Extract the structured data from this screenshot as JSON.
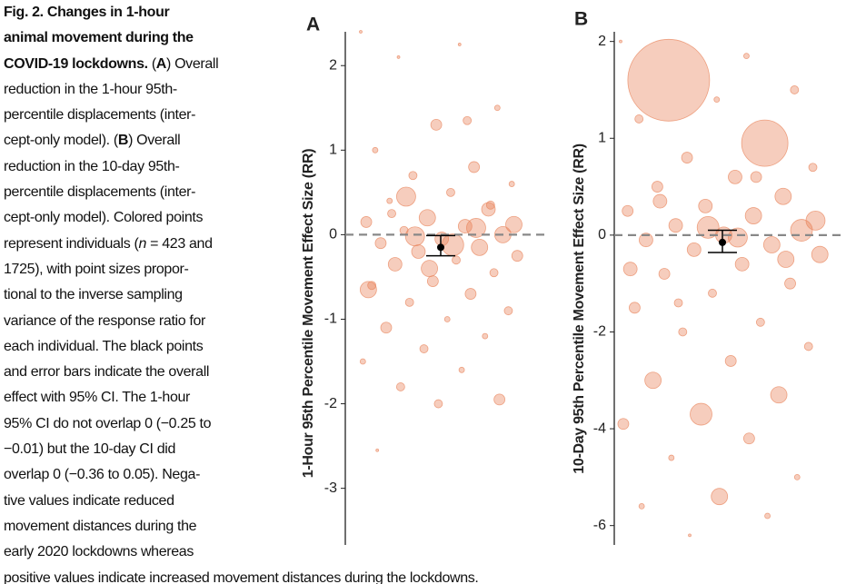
{
  "caption": {
    "lines": [
      [
        {
          "text": "Fig. 2. Changes in 1-hour",
          "bold": true
        }
      ],
      [
        {
          "text": "animal movement during the",
          "bold": true
        }
      ],
      [
        {
          "text": "COVID-19 lockdowns.",
          "bold": true
        },
        {
          "text": " ("
        },
        {
          "text": "A",
          "bold": true
        },
        {
          "text": ") Overall"
        }
      ],
      [
        {
          "text": "reduction in the 1-hour 95th-"
        }
      ],
      [
        {
          "text": "percentile displacements (inter-"
        }
      ],
      [
        {
          "text": "cept-only model). ("
        },
        {
          "text": "B",
          "bold": true
        },
        {
          "text": ") Overall"
        }
      ],
      [
        {
          "text": "reduction in the 10-day 95th-"
        }
      ],
      [
        {
          "text": "percentile displacements (inter-"
        }
      ],
      [
        {
          "text": "cept-only model). Colored points"
        }
      ],
      [
        {
          "text": "represent individuals ("
        },
        {
          "text": "n",
          "italic": true
        },
        {
          "text": " = 423 and"
        }
      ],
      [
        {
          "text": "1725), with point sizes propor-"
        }
      ],
      [
        {
          "text": "tional to the inverse sampling"
        }
      ],
      [
        {
          "text": "variance of the response ratio for"
        }
      ],
      [
        {
          "text": "each individual. The black points"
        }
      ],
      [
        {
          "text": "and error bars indicate the overall"
        }
      ],
      [
        {
          "text": "effect with 95% CI. The 1-hour"
        }
      ],
      [
        {
          "text": "95% CI do not overlap 0 (−0.25 to"
        }
      ],
      [
        {
          "text": "−0.01) but the 10-day CI did"
        }
      ],
      [
        {
          "text": "overlap 0 (−0.36 to 0.05). Nega-"
        }
      ],
      [
        {
          "text": "tive values indicate reduced"
        }
      ],
      [
        {
          "text": "movement distances during the"
        }
      ],
      [
        {
          "text": "early 2020 lockdowns whereas"
        }
      ],
      [
        {
          "text": "positive values indicate increased movement distances during the lockdowns."
        }
      ]
    ]
  },
  "chart_data": [
    {
      "type": "scatter",
      "label": "A",
      "ylabel": "1-Hour 95th Percentile Movement Effect Size (RR)",
      "color": "#e8835a",
      "ylim": [
        -3.67,
        2.4
      ],
      "yticks": [
        2,
        1,
        0,
        -1,
        -2,
        -3
      ],
      "reference_line": 0,
      "values": [
        2.4,
        2.25,
        2.1,
        1.5,
        1.3,
        1.0,
        0.8,
        0.7,
        0.6,
        0.5,
        0.4,
        0.3,
        0.2,
        0.15,
        0.1,
        0.05,
        0.0,
        -0.05,
        -0.1,
        -0.15,
        -0.2,
        -0.25,
        -0.3,
        -0.35,
        -0.45,
        -0.55,
        -0.6,
        -0.7,
        -0.8,
        -0.9,
        -1.0,
        -1.1,
        -1.2,
        -1.35,
        -1.5,
        -1.6,
        -1.8,
        -1.95,
        -2.0,
        -2.55,
        0.08,
        -0.02,
        0.12,
        -0.12,
        0.25,
        0.35,
        -0.4,
        -0.65,
        1.35,
        0.45
      ],
      "sizes": [
        1,
        1,
        1,
        2,
        4,
        2,
        4,
        3,
        2,
        3,
        2,
        5,
        6,
        4,
        5,
        3,
        6,
        5,
        4,
        6,
        5,
        4,
        3,
        5,
        3,
        4,
        3,
        4,
        3,
        3,
        2,
        4,
        2,
        3,
        2,
        2,
        3,
        4,
        3,
        1,
        7,
        7,
        6,
        8,
        3,
        3,
        6,
        6,
        3,
        7
      ],
      "effect": {
        "value": -0.15,
        "ci_low": -0.25,
        "ci_high": -0.01
      }
    },
    {
      "type": "scatter",
      "label": "B",
      "ylabel": "10-Day 95th Percentile Movement Effect Size (RR)",
      "color": "#e8835a",
      "ylim": [
        -6.4,
        2.1
      ],
      "yticks": [
        2,
        1,
        0,
        -2,
        -4,
        -6
      ],
      "reference_line": 0,
      "values": [
        2.0,
        1.85,
        1.6,
        1.5,
        1.4,
        1.2,
        0.95,
        0.8,
        0.7,
        0.6,
        0.5,
        0.4,
        0.3,
        0.25,
        0.2,
        0.1,
        0.05,
        0.0,
        -0.1,
        -0.2,
        -0.3,
        -0.4,
        -0.6,
        -0.8,
        -1.0,
        -1.2,
        -1.5,
        -1.8,
        -2.0,
        -2.3,
        -2.6,
        -3.0,
        -3.3,
        -3.7,
        -3.9,
        -4.2,
        -4.6,
        -5.0,
        -5.4,
        -5.6,
        -5.8,
        -6.2,
        0.15,
        -0.05,
        0.35,
        -0.5,
        0.08,
        -0.7,
        0.6,
        -1.4
      ],
      "sizes": [
        1,
        2,
        30,
        3,
        2,
        3,
        17,
        4,
        3,
        5,
        4,
        6,
        5,
        4,
        6,
        5,
        8,
        6,
        5,
        6,
        5,
        6,
        5,
        4,
        4,
        3,
        4,
        3,
        3,
        3,
        4,
        6,
        6,
        8,
        4,
        4,
        2,
        2,
        6,
        2,
        2,
        1,
        7,
        7,
        5,
        6,
        8,
        5,
        4,
        3
      ],
      "effect": {
        "value": -0.15,
        "ci_low": -0.36,
        "ci_high": 0.05
      }
    }
  ]
}
